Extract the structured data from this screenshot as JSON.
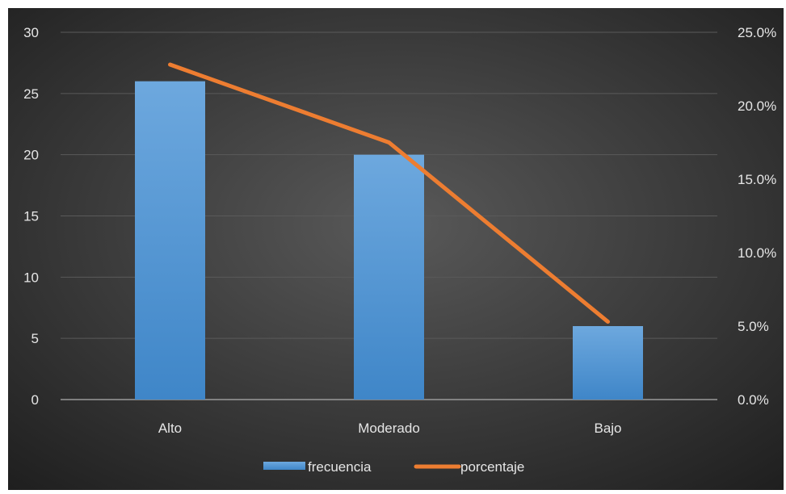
{
  "chart_data": {
    "type": "bar",
    "categories": [
      "Alto",
      "Moderado",
      "Bajo"
    ],
    "series": [
      {
        "name": "frecuencia",
        "type": "bar",
        "axis": "left",
        "values": [
          26,
          20,
          6
        ]
      },
      {
        "name": "porcentaje",
        "type": "line",
        "axis": "right",
        "values": [
          22.8,
          17.5,
          5.3
        ]
      }
    ],
    "y_left": {
      "ylim": [
        0,
        30
      ],
      "ticks": [
        "0",
        "5",
        "10",
        "15",
        "20",
        "25",
        "30"
      ]
    },
    "y_right": {
      "ylim": [
        0,
        25
      ],
      "ticks": [
        "0.0%",
        "5.0%",
        "10.0%",
        "15.0%",
        "20.0%",
        "25.0%"
      ]
    },
    "grid": true,
    "legend_position": "bottom",
    "colors": {
      "bar": "#5b9bd5",
      "line": "#ed7d31",
      "grid": "#5a5a5a",
      "text": "#e6e6e6"
    }
  }
}
